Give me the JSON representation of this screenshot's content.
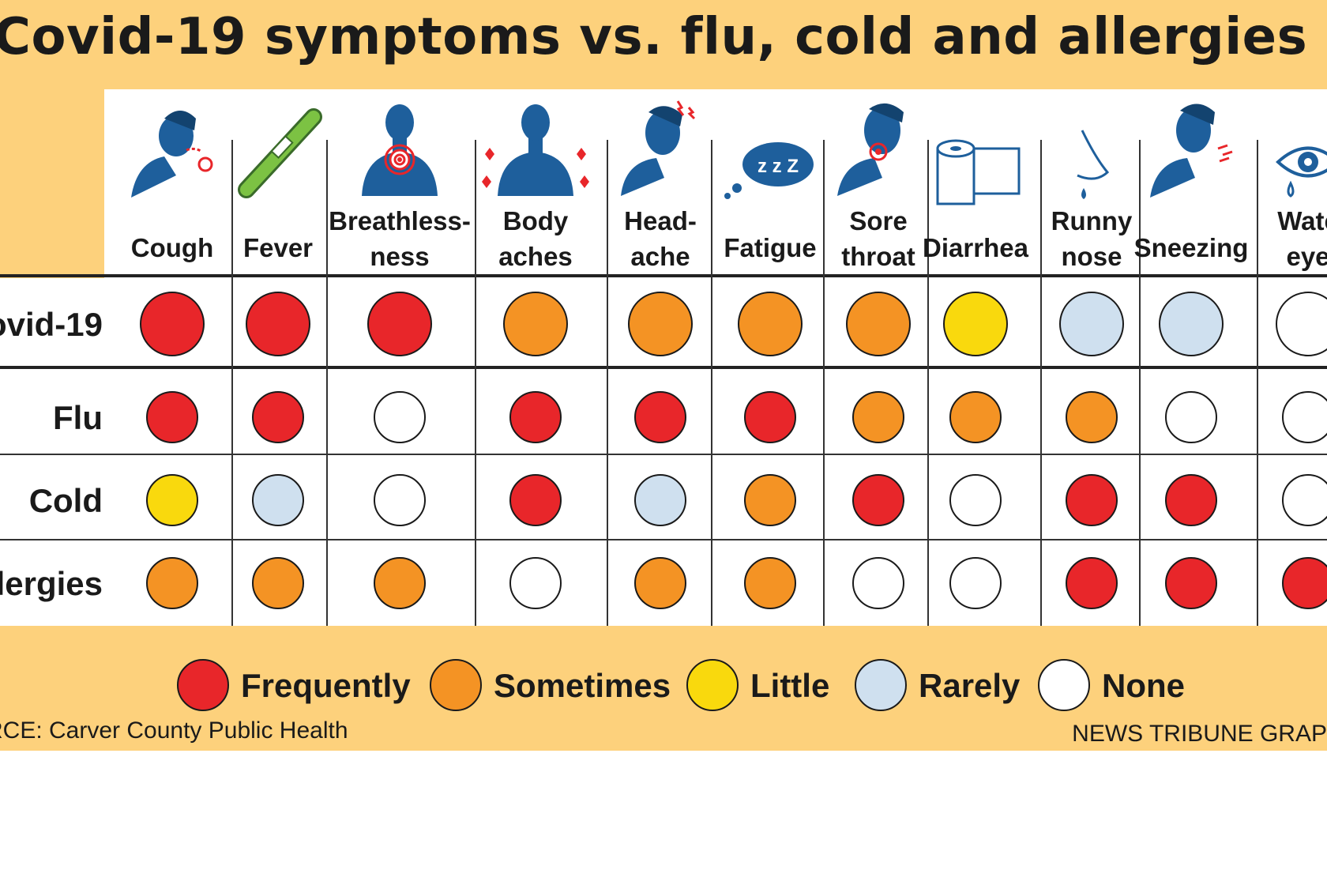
{
  "title": "Covid-19 symptoms vs. flu, cold and allergies",
  "source": "RCE: Carver County Public Health",
  "credit": "NEWS TRIBUNE GRAP",
  "icons": [
    "cough-icon",
    "thermometer-icon",
    "breathlessness-icon",
    "body-aches-icon",
    "headache-icon",
    "fatigue-zzz-icon",
    "sore-throat-icon",
    "toilet-paper-icon",
    "runny-nose-icon",
    "sneezing-icon",
    "watery-eye-icon"
  ],
  "colors": {
    "frequently": "#e8262a",
    "sometimes": "#f49324",
    "little": "#f9d90d",
    "rarely": "#cfe0ef",
    "none": "#ffffff",
    "icon_blue": "#1e5f9c",
    "banner": "#fdd17c"
  },
  "chart_data": {
    "type": "table",
    "title": "Covid-19 symptoms vs. flu, cold and allergies",
    "columns": [
      [
        "Cough"
      ],
      [
        "Fever"
      ],
      [
        "Breathless-",
        "ness"
      ],
      [
        "Body",
        "aches"
      ],
      [
        "Head-",
        "ache"
      ],
      [
        "Fatigue"
      ],
      [
        "Sore",
        "throat"
      ],
      [
        "Diarrhea"
      ],
      [
        "Runny",
        "nose"
      ],
      [
        "Sneezing"
      ],
      [
        "Wate",
        "eye"
      ]
    ],
    "rows": [
      {
        "name": "ovid-19",
        "values": [
          "Frequently",
          "Frequently",
          "Frequently",
          "Sometimes",
          "Sometimes",
          "Sometimes",
          "Sometimes",
          "Little",
          "Rarely",
          "Rarely",
          "None"
        ]
      },
      {
        "name": "Flu",
        "values": [
          "Frequently",
          "Frequently",
          "None",
          "Frequently",
          "Frequently",
          "Frequently",
          "Sometimes",
          "Sometimes",
          "Sometimes",
          "None",
          "None"
        ]
      },
      {
        "name": "Cold",
        "values": [
          "Little",
          "Rarely",
          "None",
          "Frequently",
          "Rarely",
          "Sometimes",
          "Frequently",
          "None",
          "Frequently",
          "Frequently",
          "None"
        ]
      },
      {
        "name": "llergies",
        "values": [
          "Sometimes",
          "Sometimes",
          "Sometimes",
          "None",
          "Sometimes",
          "Sometimes",
          "None",
          "None",
          "Frequently",
          "Frequently",
          "Frequently"
        ]
      }
    ],
    "legend": [
      {
        "label": "Frequently",
        "key": "frequently"
      },
      {
        "label": "Sometimes",
        "key": "sometimes"
      },
      {
        "label": "Little",
        "key": "little"
      },
      {
        "label": "Rarely",
        "key": "rarely"
      },
      {
        "label": "None",
        "key": "none"
      }
    ],
    "legend_position": "bottom"
  }
}
